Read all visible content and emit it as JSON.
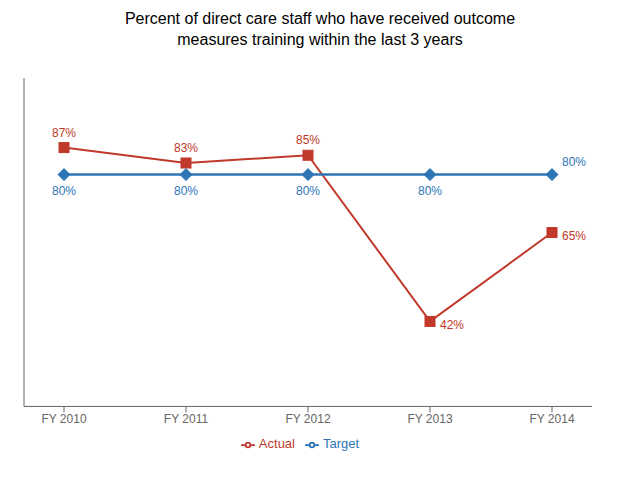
{
  "chart_data": {
    "type": "line",
    "title": "Percent of direct care staff who have received outcome\nmeasures training within the last 3 years",
    "categories": [
      "FY 2010",
      "FY 2011",
      "FY 2012",
      "FY 2013",
      "FY 2014"
    ],
    "series": [
      {
        "name": "Actual",
        "color": "#C0392B",
        "marker": "square",
        "values": [
          87,
          83,
          85,
          42,
          65
        ],
        "value_labels": [
          "87%",
          "83%",
          "85%",
          "42%",
          "65%"
        ]
      },
      {
        "name": "Target",
        "color": "#2E75B6",
        "marker": "diamond",
        "values": [
          80,
          80,
          80,
          80,
          80
        ],
        "value_labels": [
          "80%",
          "80%",
          "80%",
          "80%",
          "80%"
        ]
      }
    ],
    "ylim": [
      20,
      105
    ],
    "data_labels": true,
    "tick_labels": "x",
    "grid": false,
    "legend": "bottom"
  }
}
